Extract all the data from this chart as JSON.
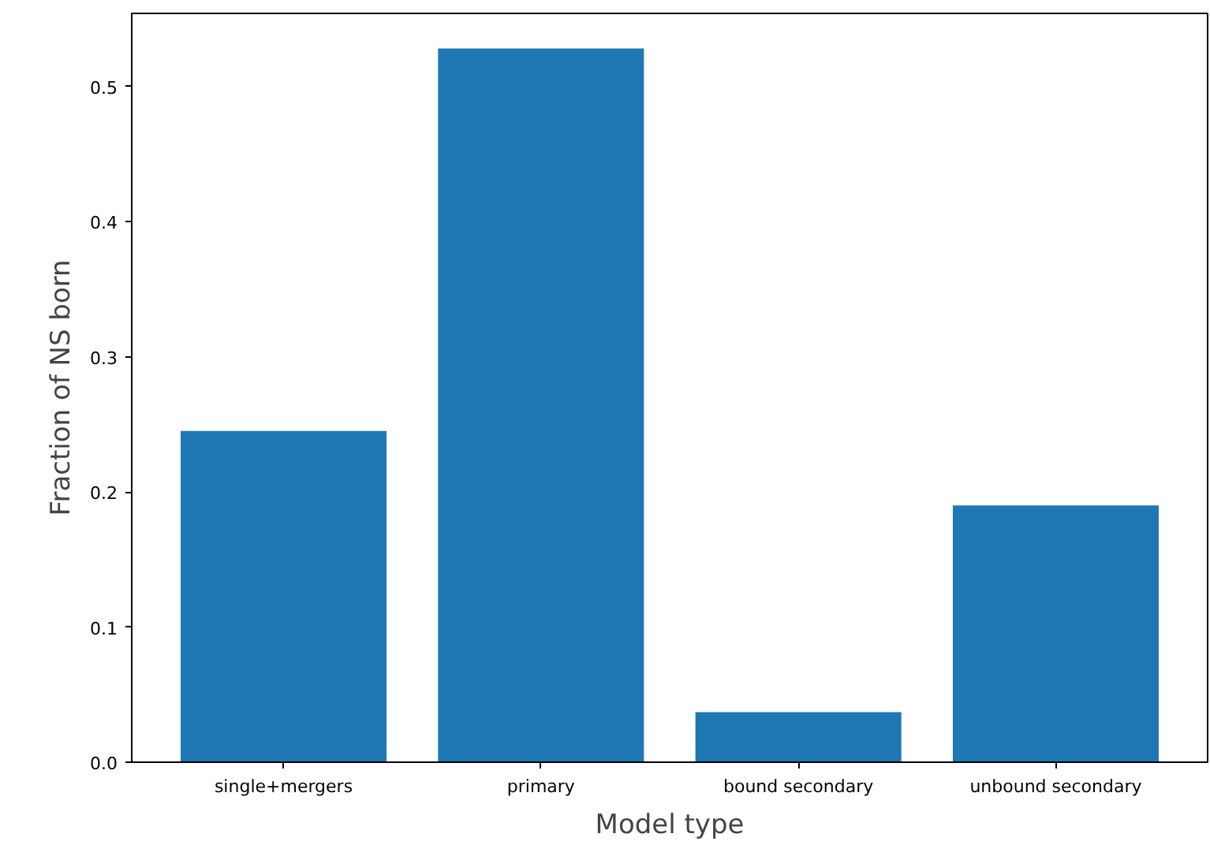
{
  "chart_data": {
    "type": "bar",
    "xlabel": "Model type",
    "ylabel": "Fraction of NS born",
    "categories": [
      "single+mergers",
      "primary",
      "bound secondary",
      "unbound secondary"
    ],
    "values": [
      0.245,
      0.528,
      0.037,
      0.19
    ],
    "color": "#1f77b4",
    "ylim": [
      0,
      0.554
    ],
    "yticks": [
      {
        "value": 0,
        "label": "0.0"
      },
      0.1,
      0.2,
      0.3,
      0.4,
      0.5
    ],
    "grid": false
  }
}
